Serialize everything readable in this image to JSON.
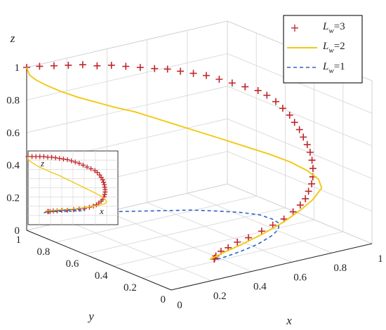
{
  "chart_data": [
    {
      "type": "line",
      "projection": "3d",
      "grid": true,
      "legend_position": "top-right",
      "xlabel": "x",
      "ylabel": "y",
      "zlabel": "z",
      "xlim": [
        0,
        1
      ],
      "ylim": [
        0,
        1
      ],
      "zlim": [
        0,
        1
      ],
      "xticks": [
        "0",
        "0.2",
        "0.4",
        "0.6",
        "0.8",
        "1"
      ],
      "yticks": [
        "0",
        "0.2",
        "0.4",
        "0.6",
        "0.8",
        "1"
      ],
      "zticks": [
        "0",
        "0.2",
        "0.4",
        "0.6",
        "0.8",
        "1"
      ],
      "series": [
        {
          "name": "Lw=3",
          "label_main": "L",
          "label_sub": "w",
          "label_rest": "=3",
          "style": "plus-markers",
          "color": "#c0262b",
          "x": [
            0,
            0.05,
            0.1,
            0.15,
            0.2,
            0.25,
            0.3,
            0.35,
            0.4,
            0.45,
            0.5,
            0.55,
            0.6,
            0.65,
            0.7,
            0.75,
            0.8,
            0.85,
            0.88,
            0.91,
            0.93,
            0.95,
            0.96,
            0.97,
            0.975,
            0.98,
            0.98,
            0.975,
            0.965,
            0.95,
            0.93,
            0.9,
            0.87,
            0.83,
            0.78,
            0.72,
            0.65,
            0.58,
            0.5,
            0.43,
            0.37,
            0.32,
            0.28,
            0.26,
            0.25
          ],
          "y": [
            1,
            0.98,
            0.95,
            0.92,
            0.89,
            0.86,
            0.83,
            0.8,
            0.77,
            0.74,
            0.72,
            0.7,
            0.68,
            0.66,
            0.64,
            0.62,
            0.6,
            0.58,
            0.56,
            0.54,
            0.52,
            0.5,
            0.48,
            0.46,
            0.44,
            0.42,
            0.4,
            0.38,
            0.36,
            0.34,
            0.32,
            0.3,
            0.28,
            0.26,
            0.24,
            0.22,
            0.2,
            0.18,
            0.16,
            0.14,
            0.12,
            0.1,
            0.08,
            0.06,
            0.05
          ],
          "z": [
            1,
            1,
            1,
            1,
            1,
            0.99,
            0.99,
            0.98,
            0.97,
            0.96,
            0.95,
            0.93,
            0.91,
            0.89,
            0.86,
            0.83,
            0.8,
            0.77,
            0.74,
            0.7,
            0.66,
            0.62,
            0.58,
            0.54,
            0.5,
            0.46,
            0.42,
            0.38,
            0.34,
            0.3,
            0.27,
            0.24,
            0.21,
            0.19,
            0.17,
            0.15,
            0.14,
            0.13,
            0.12,
            0.12,
            0.11,
            0.11,
            0.1,
            0.1,
            0.1
          ]
        },
        {
          "name": "Lw=2",
          "label_main": "L",
          "label_sub": "w",
          "label_rest": "=2",
          "style": "solid",
          "color": "#f2c811",
          "x": [
            0,
            0,
            0.02,
            0.05,
            0.1,
            0.16,
            0.23,
            0.3,
            0.38,
            0.46,
            0.54,
            0.62,
            0.7,
            0.78,
            0.86,
            0.93,
            0.98,
            1,
            0.98,
            0.9,
            0.8,
            0.68,
            0.55,
            0.42,
            0.3,
            0.22
          ],
          "y": [
            1,
            0.98,
            0.96,
            0.93,
            0.9,
            0.87,
            0.84,
            0.81,
            0.78,
            0.74,
            0.7,
            0.66,
            0.62,
            0.57,
            0.52,
            0.47,
            0.42,
            0.37,
            0.32,
            0.27,
            0.22,
            0.17,
            0.13,
            0.09,
            0.06,
            0.04
          ],
          "z": [
            1,
            0.96,
            0.93,
            0.9,
            0.86,
            0.82,
            0.78,
            0.74,
            0.7,
            0.65,
            0.6,
            0.55,
            0.5,
            0.45,
            0.4,
            0.35,
            0.3,
            0.26,
            0.23,
            0.2,
            0.18,
            0.16,
            0.14,
            0.13,
            0.12,
            0.11
          ]
        },
        {
          "name": "Lw=1",
          "label_main": "L",
          "label_sub": "w",
          "label_rest": "=1",
          "style": "dashed",
          "color": "#2a63c4",
          "x": [
            0.2,
            0.28,
            0.36,
            0.44,
            0.52,
            0.6,
            0.66,
            0.7,
            0.72,
            0.71,
            0.67,
            0.6,
            0.5,
            0.4,
            0.32,
            0.26
          ],
          "y": [
            0.9,
            0.82,
            0.74,
            0.66,
            0.58,
            0.5,
            0.43,
            0.36,
            0.3,
            0.24,
            0.19,
            0.14,
            0.1,
            0.07,
            0.05,
            0.04
          ],
          "z": [
            0.08,
            0.1,
            0.11,
            0.12,
            0.13,
            0.13,
            0.13,
            0.13,
            0.12,
            0.12,
            0.11,
            0.11,
            0.1,
            0.1,
            0.1,
            0.1
          ]
        }
      ],
      "inset": {
        "xlabel": "x",
        "zlabel": "z",
        "series": [
          "Lw=3",
          "Lw=2",
          "Lw=1"
        ]
      }
    }
  ]
}
